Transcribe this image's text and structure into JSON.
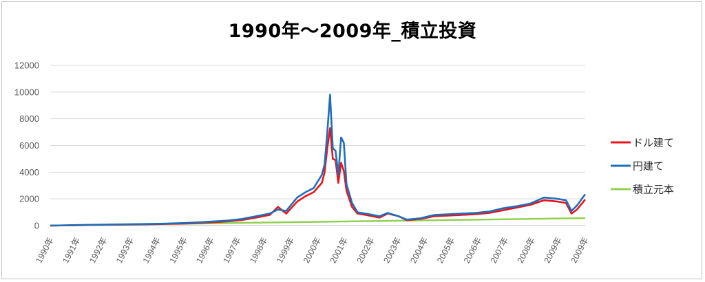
{
  "chart_data": {
    "type": "line",
    "title": "1990年～2009年_積立投資",
    "xlabel": "",
    "ylabel": "",
    "ylim": [
      0,
      12000
    ],
    "yticks": [
      0,
      2000,
      4000,
      6000,
      8000,
      10000,
      12000
    ],
    "xlim": [
      1990,
      2009.5
    ],
    "xtick_labels": [
      "1990年",
      "1991年",
      "1992年",
      "1993年",
      "1994年",
      "1995年",
      "1996年",
      "1997年",
      "1998年",
      "1999年",
      "2000年",
      "2001年",
      "2002年",
      "2003年",
      "2004年",
      "2005年",
      "2006年",
      "2007年",
      "2008年",
      "2009年",
      "2009年"
    ],
    "grid": true,
    "legend_position": "right",
    "series": [
      {
        "name": "ドル建て",
        "color": "#e8141e",
        "x": [
          1990,
          1991,
          1992,
          1993,
          1994,
          1995,
          1995.5,
          1996,
          1996.5,
          1997,
          1997.5,
          1998,
          1998.3,
          1998.6,
          1999,
          1999.3,
          1999.6,
          1999.9,
          2000,
          2000.1,
          2000.2,
          2000.3,
          2000.4,
          2000.5,
          2000.6,
          2000.7,
          2000.8,
          2001,
          2001.2,
          2001.5,
          2002,
          2002.3,
          2002.7,
          2003,
          2003.5,
          2004,
          2004.5,
          2005,
          2005.5,
          2006,
          2006.5,
          2007,
          2007.5,
          2008,
          2008.5,
          2008.8,
          2009,
          2009.2,
          2009.5
        ],
        "y": [
          0,
          30,
          60,
          90,
          120,
          160,
          200,
          260,
          320,
          420,
          600,
          800,
          1400,
          900,
          1800,
          2200,
          2500,
          3200,
          4000,
          5800,
          7300,
          5000,
          4900,
          3200,
          4700,
          4100,
          2600,
          1400,
          900,
          800,
          600,
          900,
          700,
          400,
          500,
          700,
          750,
          800,
          850,
          950,
          1150,
          1350,
          1550,
          1900,
          1800,
          1700,
          900,
          1200,
          1950
        ]
      },
      {
        "name": "円建て",
        "color": "#1f6fb8",
        "x": [
          1990,
          1991,
          1992,
          1993,
          1994,
          1995,
          1995.5,
          1996,
          1996.5,
          1997,
          1997.5,
          1998,
          1998.3,
          1998.6,
          1999,
          1999.3,
          1999.6,
          1999.9,
          2000,
          2000.1,
          2000.2,
          2000.3,
          2000.4,
          2000.5,
          2000.6,
          2000.7,
          2000.8,
          2001,
          2001.2,
          2001.5,
          2002,
          2002.3,
          2002.7,
          2003,
          2003.5,
          2004,
          2004.5,
          2005,
          2005.5,
          2006,
          2006.5,
          2007,
          2007.5,
          2008,
          2008.5,
          2008.8,
          2009,
          2009.2,
          2009.5
        ],
        "y": [
          0,
          40,
          70,
          110,
          140,
          200,
          250,
          320,
          380,
          500,
          700,
          900,
          1200,
          1100,
          2100,
          2500,
          2800,
          3800,
          4600,
          7000,
          9800,
          5800,
          5600,
          3800,
          6600,
          6200,
          3100,
          1700,
          1000,
          900,
          700,
          950,
          700,
          450,
          550,
          800,
          850,
          900,
          950,
          1050,
          1300,
          1450,
          1650,
          2100,
          2000,
          1900,
          1100,
          1500,
          2350
        ]
      },
      {
        "name": "積立元本",
        "color": "#92d050",
        "x": [
          1990,
          2009.5
        ],
        "y": [
          0,
          560
        ]
      }
    ]
  }
}
